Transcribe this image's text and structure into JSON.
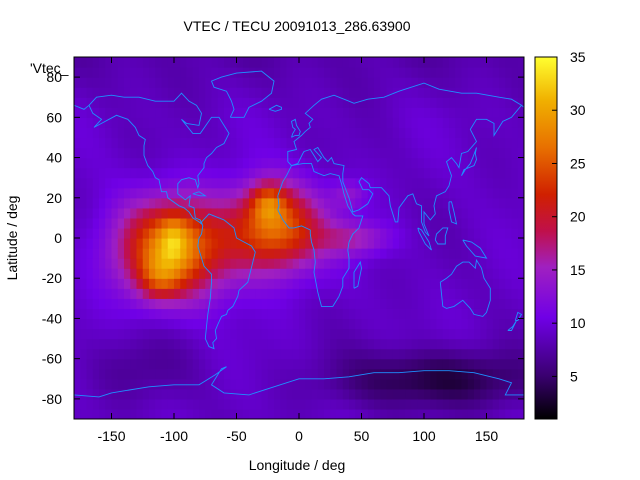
{
  "chart_data": {
    "type": "heatmap",
    "title": "VTEC / TECU 20091013_286.63900",
    "xlabel": "Longitude / deg",
    "ylabel": "Latitude / deg",
    "xlim": [
      -180,
      180
    ],
    "ylim": [
      -90,
      90
    ],
    "xticks": [
      -150,
      -100,
      -50,
      0,
      50,
      100,
      150
    ],
    "yticks": [
      -80,
      -60,
      -40,
      -20,
      0,
      20,
      40,
      60,
      80
    ],
    "colorbar": {
      "min": 1,
      "max": 35,
      "ticks": [
        5,
        10,
        15,
        20,
        25,
        30,
        35
      ]
    },
    "legend_key": "'Vtec_",
    "background_level": 9,
    "anomalies": [
      {
        "name": "american-crest",
        "lon": -100,
        "lat": -5,
        "slon": 32,
        "slat": 17,
        "peak": 19
      },
      {
        "name": "american-hotspot",
        "lon": -100,
        "lat": 0,
        "slon": 8,
        "slat": 8,
        "peak": 5
      },
      {
        "name": "american-south-lobe",
        "lon": -112,
        "lat": -20,
        "slon": 12,
        "slat": 8,
        "peak": 6
      },
      {
        "name": "atlantic-crest",
        "lon": -18,
        "lat": 5,
        "slon": 26,
        "slat": 15,
        "peak": 17
      },
      {
        "name": "west-africa-hotspot",
        "lon": -25,
        "lat": 18,
        "slon": 10,
        "slat": 7,
        "peak": 8
      },
      {
        "name": "african-tongue",
        "lon": 45,
        "lat": 0,
        "slon": 20,
        "slat": 6,
        "peak": 6
      },
      {
        "name": "arabian-patch",
        "lon": 40,
        "lat": 22,
        "slon": 10,
        "slat": 5,
        "peak": 4
      },
      {
        "name": "southern-low",
        "lon": 110,
        "lat": -70,
        "slon": 55,
        "slat": 10,
        "peak": -6
      },
      {
        "name": "pacific-low",
        "lon": -130,
        "lat": -65,
        "slon": 30,
        "slat": 12,
        "peak": -2
      }
    ]
  }
}
